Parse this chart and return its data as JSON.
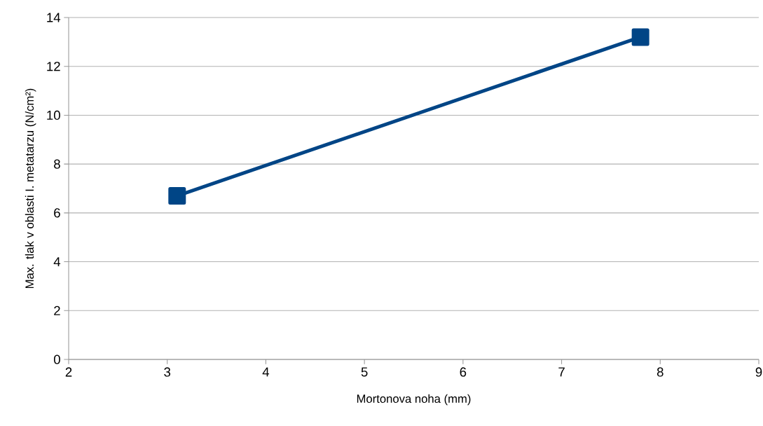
{
  "chart_data": {
    "type": "line",
    "xlabel": "Mortonova noha (mm)",
    "ylabel": "Max. tlak v oblasti I. metatarzu (N/cm²)",
    "x": [
      3.1,
      7.8
    ],
    "series": [
      {
        "color": "#004586",
        "values": [
          6.7,
          13.2
        ]
      }
    ],
    "xlim": [
      2,
      9
    ],
    "xticks": [
      2,
      3,
      4,
      5,
      6,
      7,
      8,
      9
    ],
    "ylim": [
      0,
      14
    ],
    "yticks": [
      0,
      2,
      4,
      6,
      8,
      10,
      12,
      14
    ],
    "grid": "y",
    "marker": "square",
    "line_style": "solid"
  }
}
